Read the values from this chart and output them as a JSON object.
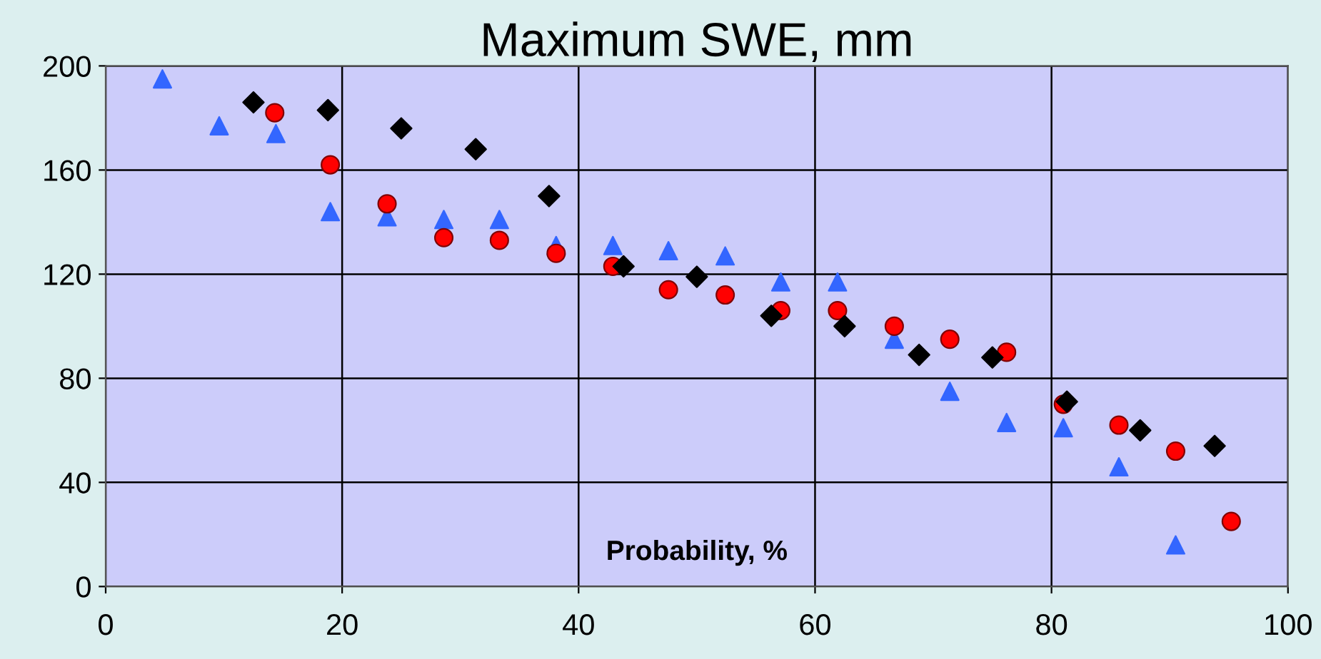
{
  "chart_data": {
    "type": "scatter",
    "title": "Maximum SWE, mm",
    "xlabel": "Probability, %",
    "xlim": [
      0,
      100
    ],
    "xticks": [
      0,
      20,
      40,
      60,
      80,
      100
    ],
    "ylim": [
      0,
      200
    ],
    "yticks": [
      0,
      40,
      80,
      120,
      160,
      200
    ],
    "grid": true,
    "series": [
      {
        "color": "#3366ff",
        "marker": "triangle",
        "x": [
          4.8,
          9.6,
          14.4,
          19.0,
          23.8,
          28.6,
          33.3,
          38.1,
          42.9,
          47.6,
          52.4,
          57.1,
          61.9,
          66.7,
          71.4,
          76.2,
          81.0,
          85.7,
          90.5
        ],
        "values": [
          195,
          177,
          174,
          144,
          142,
          141,
          141,
          131,
          131,
          129,
          127,
          117,
          117,
          95,
          75,
          63,
          61,
          46,
          16
        ]
      },
      {
        "color": "#ff0000",
        "marker": "circle",
        "x": [
          14.3,
          19.0,
          23.8,
          28.6,
          33.3,
          38.1,
          42.9,
          47.6,
          52.4,
          57.1,
          61.9,
          66.7,
          71.4,
          76.2,
          81.0,
          85.7,
          90.5,
          95.2
        ],
        "values": [
          182,
          162,
          147,
          134,
          133,
          128,
          123,
          114,
          112,
          106,
          106,
          100,
          95,
          90,
          70,
          62,
          52,
          25
        ]
      },
      {
        "color": "#000000",
        "marker": "diamond",
        "x": [
          12.5,
          18.8,
          25.0,
          31.3,
          37.5,
          43.8,
          50.0,
          56.3,
          62.5,
          68.8,
          75.0,
          81.3,
          87.5,
          93.8
        ],
        "values": [
          186,
          183,
          176,
          168,
          150,
          123,
          119,
          104,
          100,
          89,
          88,
          71,
          60,
          54
        ]
      }
    ]
  }
}
